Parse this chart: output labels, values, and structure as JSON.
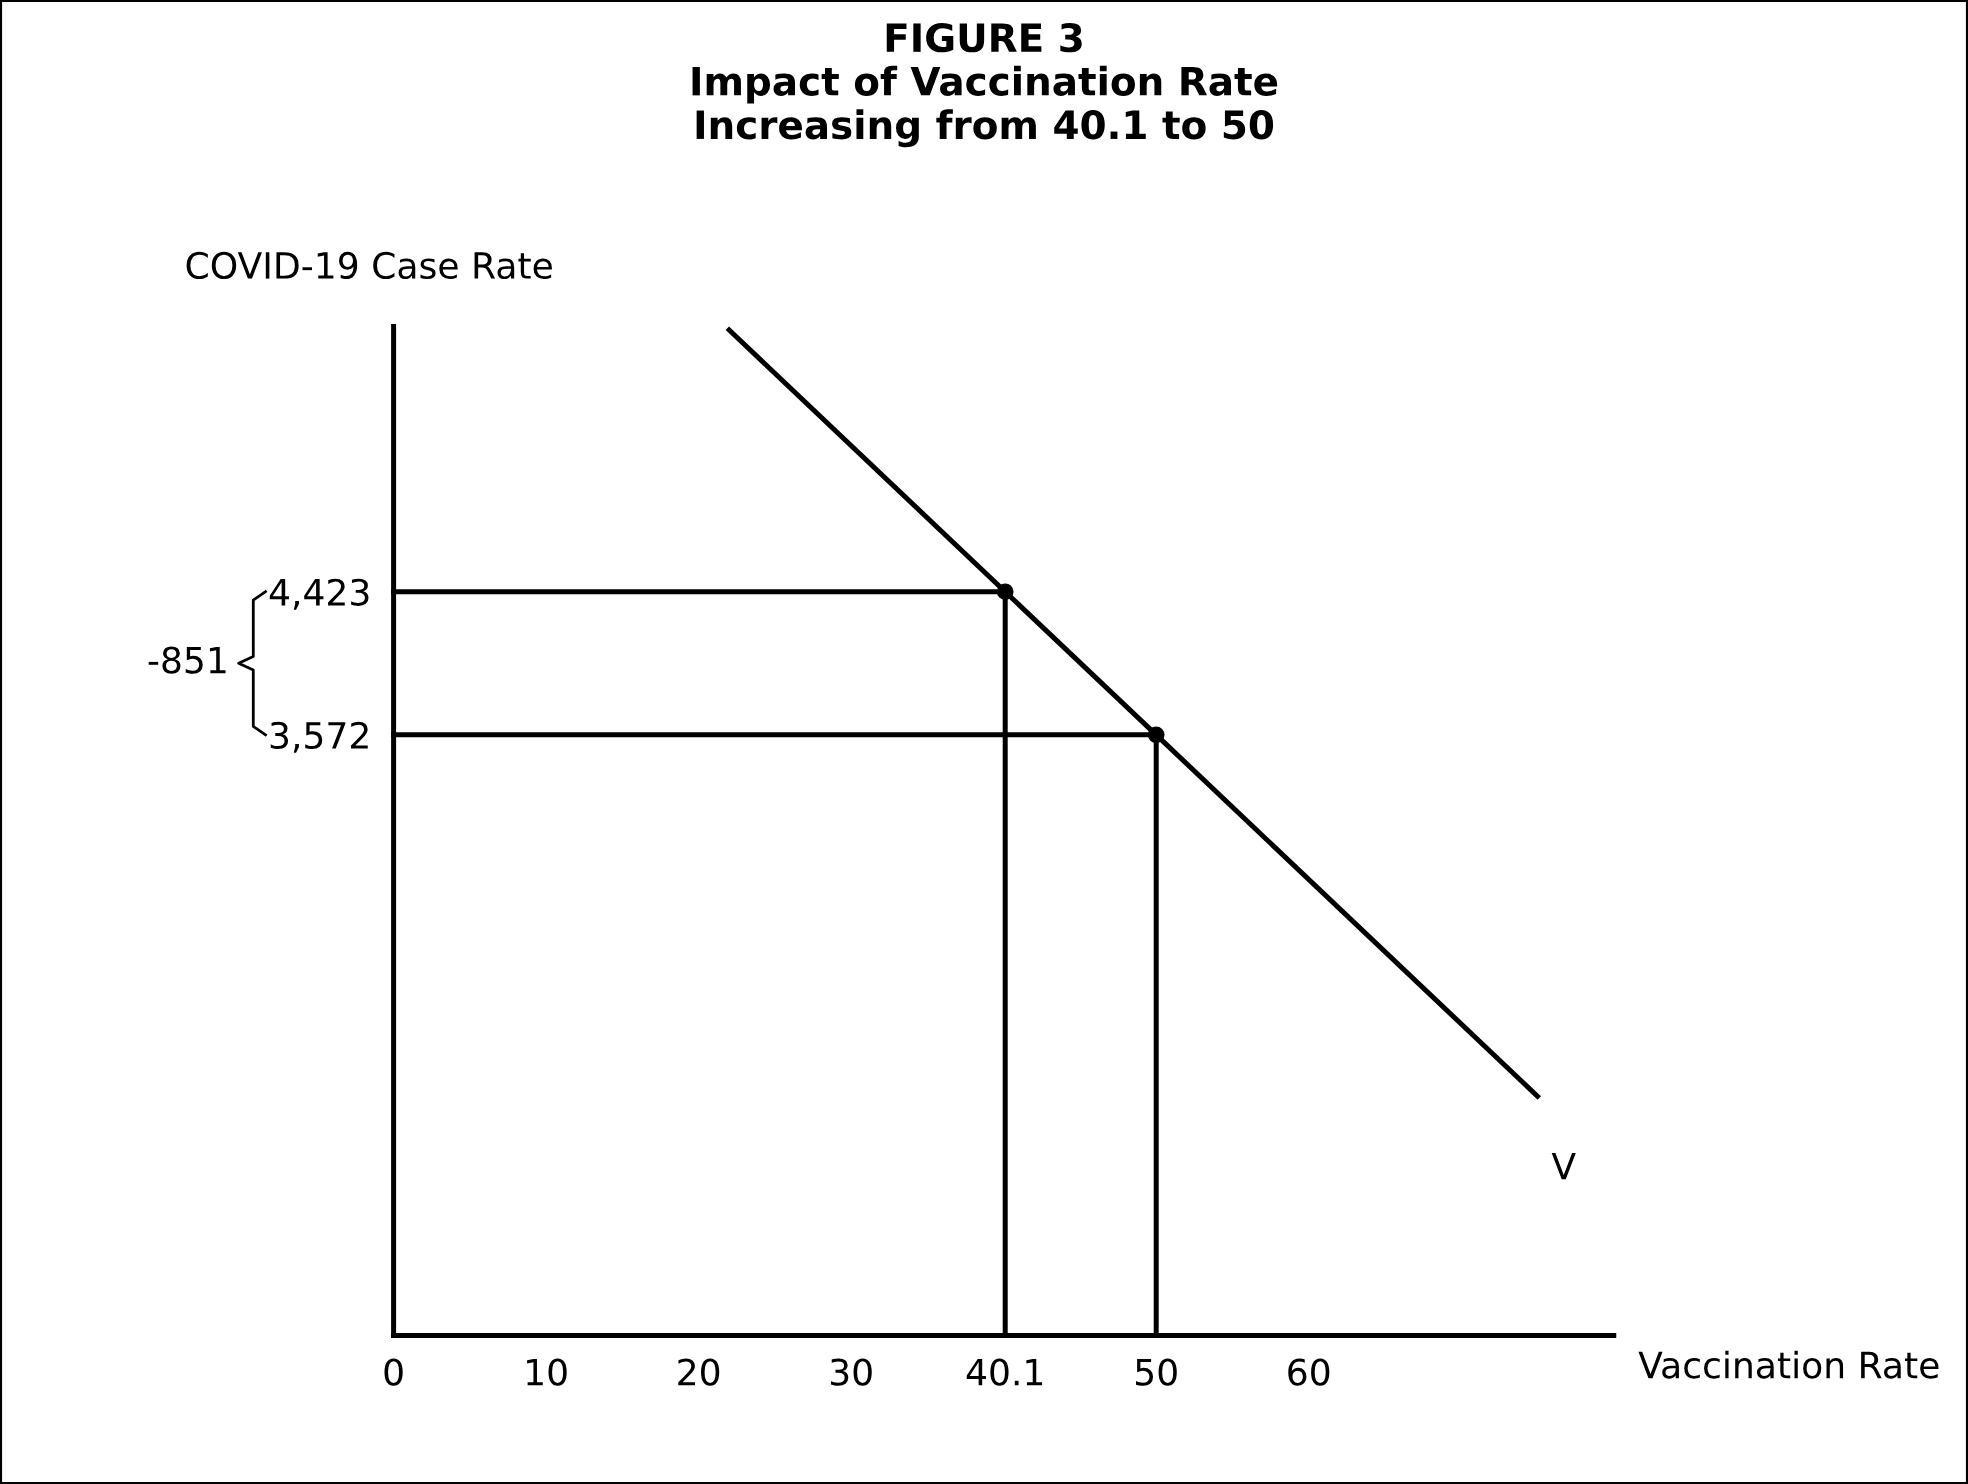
{
  "chart_data": {
    "type": "line",
    "title": "FIGURE 3\nImpact of Vaccination Rate\nIncreasing from 40.1 to 50",
    "xlabel": "Vaccination Rate",
    "ylabel": "COVID-19 Case Rate",
    "series": [
      {
        "color": "#000000",
        "x": [
          22,
          40.1,
          50,
          75
        ],
        "values": [
          5979,
          4423,
          3572,
          1423
        ]
      },
      {
        "type": "scatter",
        "color": "#000000",
        "x": [
          40.1,
          50
        ],
        "values": [
          4423,
          3572
        ],
        "marker": "circle"
      },
      {
        "color": "#000000",
        "x": [
          0,
          40.1,
          40.1
        ],
        "values": [
          4423,
          4423,
          0
        ]
      },
      {
        "color": "#000000",
        "x": [
          0,
          50,
          50
        ],
        "values": [
          3572,
          3572,
          0
        ]
      }
    ],
    "annotations": [
      {
        "text": "V",
        "x": 75,
        "y": 1423
      },
      "-851"
    ],
    "xlim": [
      0,
      80
    ],
    "ylim": [
      0,
      6000
    ],
    "xticks": [
      0,
      10,
      20,
      30,
      40.1,
      50,
      60
    ],
    "yticks": [
      {
        "value": 4423,
        "label": "4,423"
      },
      {
        "value": 3572,
        "label": "3,572"
      }
    ],
    "grid": false,
    "legend": false,
    "marker": "none",
    "line_style": "solid"
  }
}
